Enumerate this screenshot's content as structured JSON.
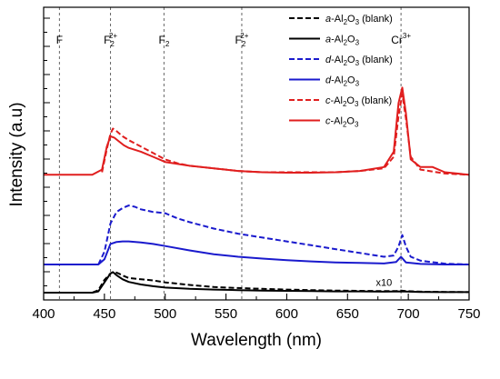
{
  "chart_data": {
    "type": "line",
    "xlabel": "Wavelength (nm)",
    "ylabel": "Intensity (a.u)",
    "xlim": [
      400,
      750
    ],
    "xticks": [
      400,
      450,
      500,
      550,
      600,
      650,
      700,
      750
    ],
    "ylim": [
      0,
      1
    ],
    "reference_lines": [
      {
        "x": 413,
        "label": "F",
        "sup": "",
        "sub": ""
      },
      {
        "x": 455,
        "label": "F",
        "sup": "2+",
        "sub": "2"
      },
      {
        "x": 499,
        "label": "F",
        "sup": "",
        "sub": "2"
      },
      {
        "x": 563,
        "label": "F",
        "sup": "2+",
        "sub": "2"
      },
      {
        "x": 694,
        "label": "Cr",
        "sup": "3+",
        "sub": ""
      }
    ],
    "annotations": [
      {
        "text": "x10",
        "x": 680,
        "y": 0.02
      }
    ],
    "legend_position": "top-right",
    "series": [
      {
        "name": "a-Al2O3 (blank)",
        "prefix": "a",
        "suffix": " (blank)",
        "color": "#000000",
        "dash": true,
        "x": [
          400,
          440,
          445,
          450,
          455,
          458,
          462,
          466,
          470,
          480,
          490,
          500,
          520,
          540,
          560,
          580,
          600,
          620,
          640,
          660,
          680,
          690,
          694,
          698,
          710,
          730,
          750
        ],
        "y": [
          0.0,
          0.0,
          0.01,
          0.05,
          0.075,
          0.082,
          0.074,
          0.065,
          0.057,
          0.052,
          0.048,
          0.04,
          0.03,
          0.022,
          0.018,
          0.015,
          0.012,
          0.01,
          0.008,
          0.007,
          0.006,
          0.006,
          0.008,
          0.006,
          0.004,
          0.003,
          0.002
        ]
      },
      {
        "name": "a-Al2O3",
        "prefix": "a",
        "suffix": "",
        "color": "#000000",
        "dash": false,
        "x": [
          400,
          440,
          445,
          450,
          455,
          457,
          460,
          465,
          470,
          480,
          490,
          500,
          520,
          540,
          560,
          580,
          600,
          620,
          640,
          660,
          680,
          694,
          710,
          730,
          750
        ],
        "y": [
          0.0,
          0.0,
          0.005,
          0.04,
          0.075,
          0.08,
          0.068,
          0.052,
          0.042,
          0.032,
          0.025,
          0.02,
          0.015,
          0.012,
          0.01,
          0.008,
          0.007,
          0.006,
          0.005,
          0.005,
          0.004,
          0.005,
          0.003,
          0.002,
          0.002
        ]
      },
      {
        "name": "d-Al2O3 (blank)",
        "prefix": "d",
        "suffix": " (blank)",
        "color": "#1a1acd",
        "dash": true,
        "x": [
          445,
          450,
          455,
          460,
          465,
          470,
          475,
          480,
          490,
          500,
          510,
          520,
          540,
          560,
          580,
          600,
          620,
          640,
          660,
          680,
          688,
          692,
          695,
          698,
          702,
          710,
          730,
          750
        ],
        "y": [
          0.11,
          0.16,
          0.27,
          0.315,
          0.33,
          0.34,
          0.335,
          0.325,
          0.315,
          0.31,
          0.29,
          0.275,
          0.25,
          0.23,
          0.215,
          0.2,
          0.185,
          0.17,
          0.155,
          0.14,
          0.145,
          0.18,
          0.225,
          0.18,
          0.14,
          0.125,
          0.113,
          0.11
        ]
      },
      {
        "name": "d-Al2O3",
        "prefix": "d",
        "suffix": "",
        "color": "#1a1acd",
        "dash": false,
        "x": [
          400,
          445,
          450,
          455,
          460,
          465,
          470,
          480,
          490,
          500,
          520,
          540,
          560,
          580,
          600,
          620,
          640,
          660,
          680,
          690,
          694,
          698,
          710,
          730,
          750
        ],
        "y": [
          0.11,
          0.11,
          0.13,
          0.19,
          0.198,
          0.2,
          0.2,
          0.196,
          0.19,
          0.182,
          0.165,
          0.15,
          0.14,
          0.133,
          0.127,
          0.122,
          0.118,
          0.116,
          0.114,
          0.12,
          0.14,
          0.118,
          0.112,
          0.11,
          0.11
        ]
      },
      {
        "name": "c-Al2O3 (blank)",
        "prefix": "c",
        "suffix": " (blank)",
        "color": "#e01e1e",
        "dash": true,
        "x": [
          448,
          452,
          455,
          457,
          460,
          465,
          470,
          480,
          490,
          500,
          510,
          520,
          540,
          560,
          580,
          600,
          620,
          640,
          660,
          680,
          688,
          692,
          695,
          698,
          702,
          710,
          730,
          750
        ],
        "y": [
          0.47,
          0.56,
          0.62,
          0.64,
          0.63,
          0.61,
          0.595,
          0.57,
          0.545,
          0.52,
          0.505,
          0.495,
          0.485,
          0.475,
          0.47,
          0.47,
          0.47,
          0.47,
          0.475,
          0.485,
          0.53,
          0.69,
          0.775,
          0.68,
          0.53,
          0.48,
          0.465,
          0.46
        ]
      },
      {
        "name": "c-Al2O3",
        "prefix": "c",
        "suffix": "",
        "color": "#e01e1e",
        "dash": false,
        "x": [
          400,
          440,
          448,
          452,
          455,
          458,
          462,
          466,
          470,
          480,
          490,
          500,
          520,
          540,
          560,
          580,
          600,
          620,
          640,
          660,
          680,
          688,
          692,
          695,
          698,
          702,
          710,
          720,
          730,
          750
        ],
        "y": [
          0.46,
          0.46,
          0.48,
          0.57,
          0.61,
          0.605,
          0.59,
          0.575,
          0.565,
          0.55,
          0.53,
          0.51,
          0.495,
          0.485,
          0.475,
          0.47,
          0.468,
          0.468,
          0.47,
          0.475,
          0.49,
          0.55,
          0.74,
          0.8,
          0.7,
          0.52,
          0.49,
          0.49,
          0.47,
          0.46
        ]
      }
    ]
  }
}
